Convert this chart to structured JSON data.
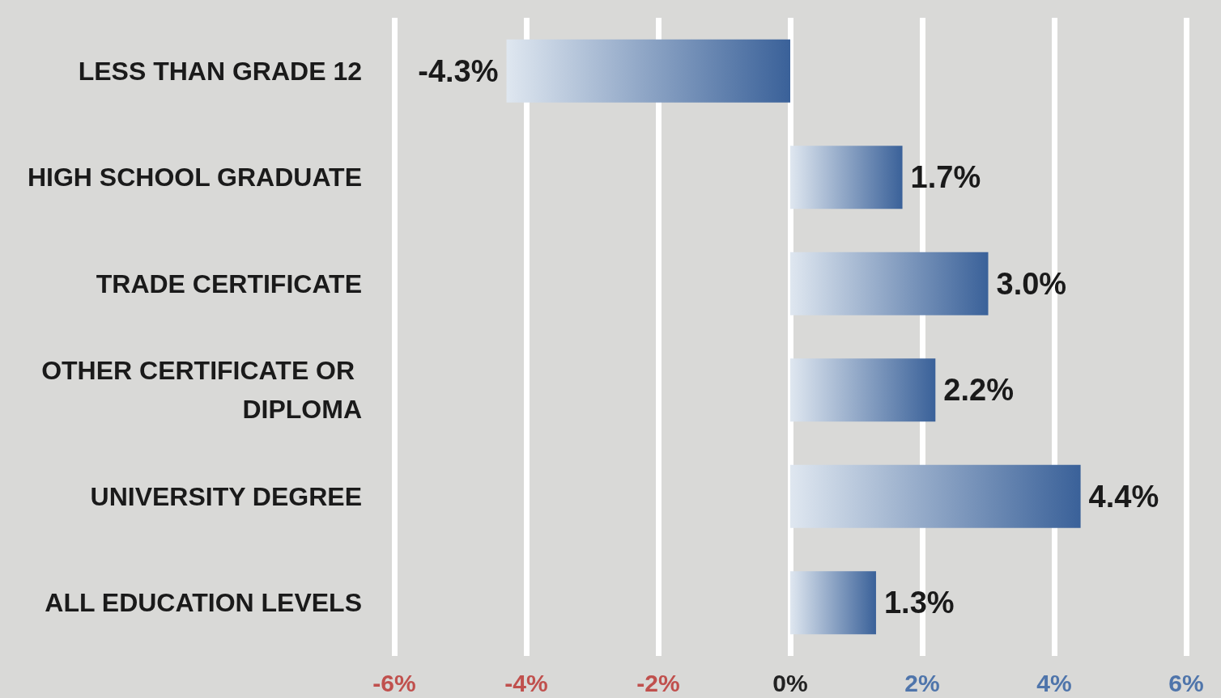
{
  "chart_data": {
    "type": "bar",
    "orientation": "horizontal",
    "categories": [
      "LESS THAN GRADE 12",
      "HIGH SCHOOL GRADUATE",
      "TRADE CERTIFICATE",
      "OTHER CERTIFICATE OR DIPLOMA",
      "UNIVERSITY DEGREE",
      "ALL EDUCATION LEVELS"
    ],
    "values": [
      -4.3,
      1.7,
      3.0,
      2.2,
      4.4,
      1.3
    ],
    "value_labels": [
      "-4.3%",
      "1.7%",
      "3.0%",
      "2.2%",
      "4.4%",
      "1.3%"
    ],
    "color": "#3a6199",
    "xlim": [
      -6,
      6
    ],
    "xticks": [
      {
        "value": -6,
        "label": "-6%"
      },
      {
        "value": -4,
        "label": "-4%"
      },
      {
        "value": -2,
        "label": "-2%"
      },
      {
        "value": 0,
        "label": "0%"
      },
      {
        "value": 2,
        "label": "2%"
      },
      {
        "value": 4,
        "label": "4%"
      },
      {
        "value": 6,
        "label": "6%"
      }
    ],
    "grid": "x"
  }
}
